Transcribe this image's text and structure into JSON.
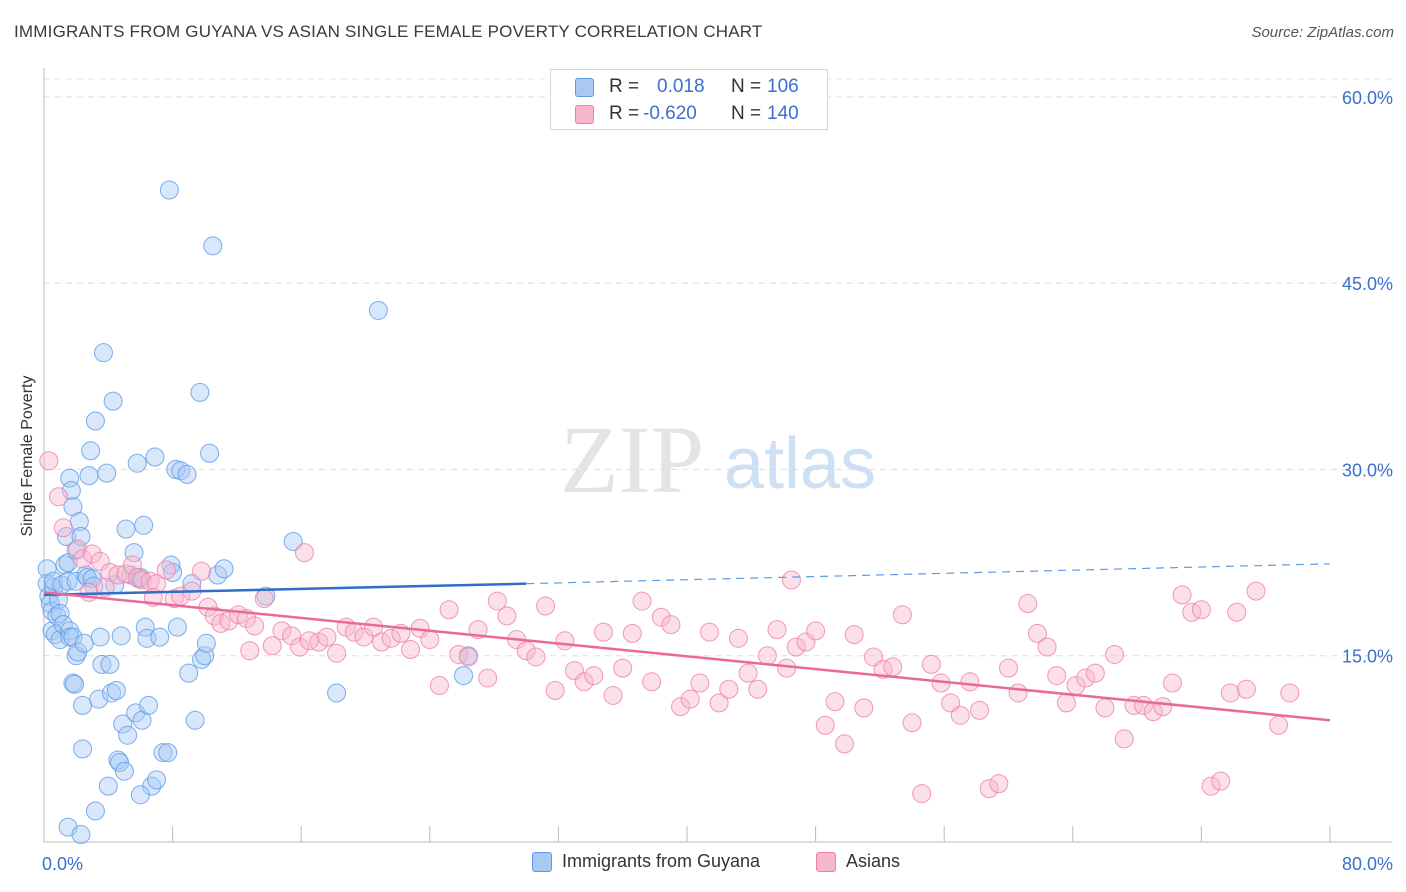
{
  "title": "IMMIGRANTS FROM GUYANA VS ASIAN SINGLE FEMALE POVERTY CORRELATION CHART",
  "source": "Source: ZipAtlas.com",
  "watermark": {
    "zip": "ZIP",
    "atlas": "atlas"
  },
  "stats_legend": [
    {
      "r_label": "R =",
      "r_value": "0.018",
      "n_label": "N =",
      "n_value": "106",
      "color": "#5b9be8"
    },
    {
      "r_label": "R =",
      "r_value": "-0.620",
      "n_label": "N =",
      "n_value": "140",
      "color": "#f07fa8"
    }
  ],
  "chart_data": {
    "type": "scatter",
    "title": "IMMIGRANTS FROM GUYANA VS ASIAN SINGLE FEMALE POVERTY CORRELATION CHART",
    "xlabel": "",
    "ylabel": "Single Female Poverty",
    "xlim": [
      0,
      80
    ],
    "ylim": [
      0,
      62
    ],
    "x_tick_labels": [
      "0.0%",
      "80.0%"
    ],
    "y_ticks": [
      15,
      30,
      45,
      60
    ],
    "y_tick_labels": [
      "15.0%",
      "30.0%",
      "45.0%",
      "60.0%"
    ],
    "grid": true,
    "legend_placement": "bottom",
    "series": [
      {
        "name": "Immigrants from Guyana",
        "color": "#5b9be8",
        "fill": "#a9c9f3",
        "trend": {
          "x0": 0,
          "y0": 19.9,
          "x1": 30,
          "y1": 20.8,
          "dashed_to_x": 80,
          "dashed_to_y": 22.4
        },
        "points": [
          [
            0.2,
            22
          ],
          [
            0.2,
            20.8
          ],
          [
            0.3,
            19.8
          ],
          [
            0.4,
            19.2
          ],
          [
            0.5,
            18.6
          ],
          [
            0.5,
            17
          ],
          [
            0.6,
            20.5
          ],
          [
            0.6,
            21
          ],
          [
            0.7,
            16.7
          ],
          [
            0.8,
            18.2
          ],
          [
            0.9,
            19.5
          ],
          [
            1,
            16.3
          ],
          [
            1,
            18.4
          ],
          [
            1.1,
            20.7
          ],
          [
            1.2,
            17.5
          ],
          [
            1.3,
            22.3
          ],
          [
            1.4,
            24.6
          ],
          [
            1.5,
            22.5
          ],
          [
            1.5,
            21
          ],
          [
            1.6,
            17
          ],
          [
            1.6,
            29.3
          ],
          [
            1.6,
            16.5
          ],
          [
            1.7,
            28.3
          ],
          [
            1.8,
            27
          ],
          [
            1.8,
            12.8
          ],
          [
            1.8,
            16.5
          ],
          [
            1.9,
            12.7
          ],
          [
            2,
            21
          ],
          [
            2,
            23.5
          ],
          [
            2,
            15
          ],
          [
            2.1,
            15.3
          ],
          [
            2.2,
            25.8
          ],
          [
            2.3,
            24.6
          ],
          [
            2.4,
            7.5
          ],
          [
            2.4,
            11
          ],
          [
            2.5,
            16
          ],
          [
            2.6,
            21.5
          ],
          [
            2.7,
            21.3
          ],
          [
            2.8,
            29.5
          ],
          [
            2.9,
            31.5
          ],
          [
            3,
            21.2
          ],
          [
            3.1,
            20.6
          ],
          [
            3.2,
            33.9
          ],
          [
            3.4,
            11.5
          ],
          [
            3.5,
            16.5
          ],
          [
            3.6,
            14.3
          ],
          [
            3.7,
            39.4
          ],
          [
            3.9,
            29.7
          ],
          [
            4.1,
            14.3
          ],
          [
            4.2,
            12
          ],
          [
            4.3,
            35.5
          ],
          [
            4.4,
            20.7
          ],
          [
            4.5,
            12.2
          ],
          [
            4.6,
            6.6
          ],
          [
            4.7,
            6.4
          ],
          [
            4.8,
            16.6
          ],
          [
            4.9,
            9.5
          ],
          [
            5.1,
            25.2
          ],
          [
            5.2,
            8.6
          ],
          [
            5.4,
            21.5
          ],
          [
            5.6,
            23.3
          ],
          [
            5.7,
            10.4
          ],
          [
            5.8,
            30.5
          ],
          [
            5.9,
            21.2
          ],
          [
            6,
            21.3
          ],
          [
            6.1,
            9.8
          ],
          [
            6.2,
            25.5
          ],
          [
            6.3,
            17.3
          ],
          [
            6.4,
            16.4
          ],
          [
            6.5,
            11
          ],
          [
            6.7,
            4.5
          ],
          [
            6.9,
            31
          ],
          [
            7,
            5
          ],
          [
            7.2,
            16.5
          ],
          [
            7.4,
            7.2
          ],
          [
            7.7,
            7.2
          ],
          [
            7.8,
            52.5
          ],
          [
            7.9,
            22.3
          ],
          [
            8,
            21.7
          ],
          [
            8.2,
            30
          ],
          [
            8.3,
            17.3
          ],
          [
            8.5,
            29.9
          ],
          [
            8.9,
            29.6
          ],
          [
            9,
            13.6
          ],
          [
            9.2,
            20.8
          ],
          [
            9.4,
            9.8
          ],
          [
            9.7,
            36.2
          ],
          [
            9.8,
            14.7
          ],
          [
            10,
            15
          ],
          [
            10.1,
            16
          ],
          [
            10.3,
            31.3
          ],
          [
            10.5,
            48
          ],
          [
            10.8,
            21.5
          ],
          [
            11.2,
            22
          ],
          [
            13.8,
            19.8
          ],
          [
            15.5,
            24.2
          ],
          [
            18.2,
            12
          ],
          [
            20.8,
            42.8
          ],
          [
            26.1,
            13.4
          ],
          [
            26.4,
            15
          ],
          [
            1.5,
            1.2
          ],
          [
            2.3,
            0.6
          ],
          [
            4,
            4.5
          ],
          [
            5,
            5.7
          ],
          [
            6,
            3.8
          ],
          [
            3.2,
            2.5
          ]
        ]
      },
      {
        "name": "Asians",
        "color": "#f07fa8",
        "fill": "#f7b8cf",
        "trend": {
          "x0": 0,
          "y0": 20.1,
          "x1": 80,
          "y1": 9.8
        },
        "points": [
          [
            0.3,
            30.7
          ],
          [
            0.9,
            27.8
          ],
          [
            1.2,
            25.3
          ],
          [
            2.1,
            23.6
          ],
          [
            2.4,
            22.8
          ],
          [
            3,
            23.2
          ],
          [
            3.5,
            22.6
          ],
          [
            4.1,
            21.7
          ],
          [
            4.6,
            21.5
          ],
          [
            5.1,
            21.6
          ],
          [
            5.5,
            22.3
          ],
          [
            5.8,
            21.3
          ],
          [
            6.1,
            21.1
          ],
          [
            6.6,
            21
          ],
          [
            7,
            20.8
          ],
          [
            7.6,
            21.9
          ],
          [
            8.1,
            19.6
          ],
          [
            8.5,
            19.8
          ],
          [
            9.2,
            20.2
          ],
          [
            9.8,
            21.8
          ],
          [
            10.2,
            18.9
          ],
          [
            10.6,
            18.2
          ],
          [
            11,
            17.6
          ],
          [
            11.5,
            17.8
          ],
          [
            12.1,
            18.3
          ],
          [
            12.6,
            18
          ],
          [
            13.1,
            17.4
          ],
          [
            13.7,
            19.6
          ],
          [
            14.2,
            15.8
          ],
          [
            14.8,
            17
          ],
          [
            15.4,
            16.6
          ],
          [
            15.9,
            15.7
          ],
          [
            16.5,
            16.2
          ],
          [
            17.1,
            16.1
          ],
          [
            17.6,
            16.5
          ],
          [
            18.2,
            15.2
          ],
          [
            18.8,
            17.3
          ],
          [
            19.3,
            16.9
          ],
          [
            19.9,
            16.5
          ],
          [
            20.5,
            17.3
          ],
          [
            21,
            16.1
          ],
          [
            21.6,
            16.4
          ],
          [
            22.2,
            16.8
          ],
          [
            22.8,
            15.5
          ],
          [
            23.4,
            17.2
          ],
          [
            24,
            16.3
          ],
          [
            24.6,
            12.6
          ],
          [
            25.2,
            18.7
          ],
          [
            25.8,
            15.1
          ],
          [
            26.4,
            14.9
          ],
          [
            27,
            17.1
          ],
          [
            27.6,
            13.2
          ],
          [
            28.2,
            19.4
          ],
          [
            28.8,
            18.2
          ],
          [
            29.4,
            16.3
          ],
          [
            30,
            15.4
          ],
          [
            30.6,
            14.9
          ],
          [
            31.2,
            19
          ],
          [
            31.8,
            12.2
          ],
          [
            32.4,
            16.2
          ],
          [
            33,
            13.8
          ],
          [
            33.6,
            12.9
          ],
          [
            34.2,
            13.4
          ],
          [
            34.8,
            16.9
          ],
          [
            35.4,
            11.8
          ],
          [
            36,
            14
          ],
          [
            36.6,
            16.8
          ],
          [
            37.2,
            19.4
          ],
          [
            37.8,
            12.9
          ],
          [
            38.4,
            18.1
          ],
          [
            39,
            17.5
          ],
          [
            39.6,
            10.9
          ],
          [
            40.2,
            11.5
          ],
          [
            40.8,
            12.8
          ],
          [
            41.4,
            16.9
          ],
          [
            42,
            11.2
          ],
          [
            42.6,
            12.3
          ],
          [
            43.2,
            16.4
          ],
          [
            43.8,
            13.6
          ],
          [
            44.4,
            12.3
          ],
          [
            45,
            15
          ],
          [
            45.6,
            17.1
          ],
          [
            46.2,
            14
          ],
          [
            46.8,
            15.7
          ],
          [
            47.4,
            16.1
          ],
          [
            48,
            17
          ],
          [
            48.6,
            9.4
          ],
          [
            49.2,
            11.3
          ],
          [
            49.8,
            7.9
          ],
          [
            50.4,
            16.7
          ],
          [
            51,
            10.8
          ],
          [
            51.6,
            14.9
          ],
          [
            52.2,
            13.9
          ],
          [
            52.8,
            14.1
          ],
          [
            53.4,
            18.3
          ],
          [
            54,
            9.6
          ],
          [
            54.6,
            3.9
          ],
          [
            55.2,
            14.3
          ],
          [
            55.8,
            12.8
          ],
          [
            56.4,
            11.2
          ],
          [
            57,
            10.2
          ],
          [
            57.6,
            12.9
          ],
          [
            58.2,
            10.6
          ],
          [
            58.8,
            4.3
          ],
          [
            59.4,
            4.7
          ],
          [
            60,
            14
          ],
          [
            60.6,
            12
          ],
          [
            61.2,
            19.2
          ],
          [
            61.8,
            16.8
          ],
          [
            62.4,
            15.7
          ],
          [
            63,
            13.4
          ],
          [
            63.6,
            11.2
          ],
          [
            64.2,
            12.6
          ],
          [
            64.8,
            13.2
          ],
          [
            65.4,
            13.6
          ],
          [
            66,
            10.8
          ],
          [
            66.6,
            15.1
          ],
          [
            67.2,
            8.3
          ],
          [
            67.8,
            11
          ],
          [
            68.4,
            11
          ],
          [
            69,
            10.5
          ],
          [
            69.6,
            10.9
          ],
          [
            70.2,
            12.8
          ],
          [
            70.8,
            19.9
          ],
          [
            71.4,
            18.5
          ],
          [
            72,
            18.7
          ],
          [
            72.6,
            4.5
          ],
          [
            73.2,
            4.9
          ],
          [
            73.8,
            12
          ],
          [
            74.2,
            18.5
          ],
          [
            74.8,
            12.3
          ],
          [
            75.4,
            20.2
          ],
          [
            76.8,
            9.4
          ],
          [
            77.5,
            12
          ],
          [
            2.8,
            20.1
          ],
          [
            3.8,
            20.5
          ],
          [
            6.8,
            19.7
          ],
          [
            12.8,
            15.4
          ],
          [
            16.2,
            23.3
          ],
          [
            46.5,
            21.1
          ]
        ]
      }
    ]
  },
  "bottom_legend": [
    {
      "label": "Immigrants from Guyana",
      "color": "#5b9be8",
      "fill": "#a9c9f3"
    },
    {
      "label": "Asians",
      "color": "#f07fa8",
      "fill": "#f7b8cf"
    }
  ]
}
